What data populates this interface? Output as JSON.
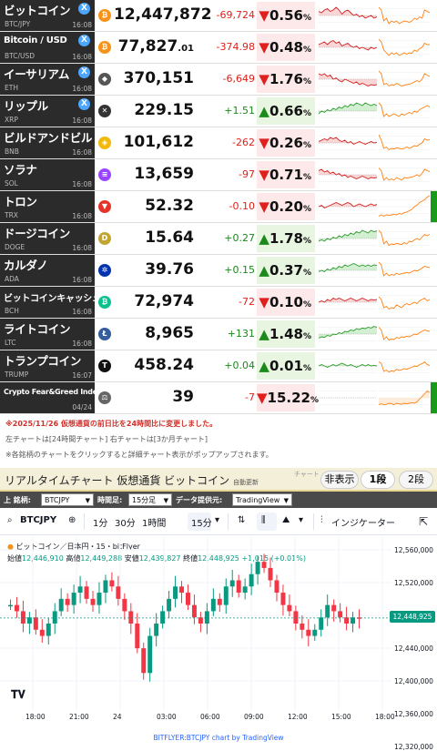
{
  "rates": [
    {
      "name": "ビットコイン",
      "symbol": "BTC/JPY",
      "time": "16:08",
      "x": true,
      "icon": "bitcoin-icon",
      "icon_glyph": "₿",
      "icon_color": "#f7931a",
      "price": "12,447,872",
      "price_small": "",
      "change": "-69,724",
      "dir": "down",
      "pct": "0.56",
      "today_spark": [
        0.35,
        0.4,
        0.3,
        0.25,
        0.35,
        0.3,
        0.2,
        0.3,
        0.45,
        0.35,
        0.3,
        0.4,
        0.5,
        0.45,
        0.55,
        0.5,
        0.6,
        0.55,
        0.5,
        0.6,
        0.55
      ],
      "month_spark": [
        0.2,
        0.3,
        0.7,
        0.6,
        0.8,
        0.7,
        0.75,
        0.7,
        0.8,
        0.75,
        0.7,
        0.72,
        0.75,
        0.7,
        0.6,
        0.65,
        0.55,
        0.6,
        0.3,
        0.35,
        0.4
      ],
      "bar": ""
    },
    {
      "name": "Bitcoin / USD",
      "symbol": "BTC/USD",
      "time": "16:08",
      "x": true,
      "icon": "bitcoin-icon",
      "icon_glyph": "₿",
      "icon_color": "#f7931a",
      "price": "77,827",
      "price_small": ".01",
      "change": "-374.98",
      "dir": "down",
      "pct": "0.48",
      "today_spark": [
        0.4,
        0.35,
        0.3,
        0.4,
        0.3,
        0.25,
        0.35,
        0.3,
        0.45,
        0.4,
        0.35,
        0.45,
        0.5,
        0.45,
        0.55,
        0.5,
        0.55,
        0.6,
        0.5,
        0.55,
        0.5
      ],
      "month_spark": [
        0.2,
        0.3,
        0.6,
        0.7,
        0.8,
        0.7,
        0.75,
        0.7,
        0.8,
        0.75,
        0.7,
        0.75,
        0.7,
        0.72,
        0.6,
        0.65,
        0.55,
        0.5,
        0.35,
        0.4,
        0.4
      ],
      "bar": ""
    },
    {
      "name": "イーサリアム",
      "symbol": "ETH",
      "time": "16:08",
      "x": true,
      "icon": "ethereum-icon",
      "icon_glyph": "◆",
      "icon_color": "#555555",
      "price": "370,151",
      "price_small": "",
      "change": "-6,649",
      "dir": "down",
      "pct": "1.76",
      "today_spark": [
        0.3,
        0.35,
        0.3,
        0.4,
        0.35,
        0.5,
        0.45,
        0.55,
        0.6,
        0.5,
        0.55,
        0.6,
        0.65,
        0.6,
        0.7,
        0.65,
        0.7,
        0.75,
        0.7,
        0.72,
        0.7
      ],
      "month_spark": [
        0.2,
        0.3,
        0.7,
        0.65,
        0.75,
        0.7,
        0.72,
        0.65,
        0.7,
        0.75,
        0.72,
        0.7,
        0.68,
        0.65,
        0.6,
        0.55,
        0.6,
        0.5,
        0.3,
        0.35,
        0.4
      ],
      "bar": ""
    },
    {
      "name": "リップル",
      "symbol": "XRP",
      "time": "16:08",
      "x": true,
      "icon": "xrp-icon",
      "icon_glyph": "✕",
      "icon_color": "#333333",
      "price": "229.15",
      "price_small": "",
      "change": "+1.51",
      "dir": "up",
      "pct": "0.66",
      "today_spark": [
        0.6,
        0.5,
        0.55,
        0.45,
        0.5,
        0.4,
        0.45,
        0.35,
        0.4,
        0.3,
        0.35,
        0.25,
        0.3,
        0.2,
        0.25,
        0.3,
        0.2,
        0.25,
        0.3,
        0.25,
        0.3
      ],
      "month_spark": [
        0.2,
        0.3,
        0.7,
        0.6,
        0.7,
        0.65,
        0.6,
        0.65,
        0.7,
        0.6,
        0.65,
        0.6,
        0.55,
        0.6,
        0.5,
        0.55,
        0.45,
        0.4,
        0.35,
        0.3,
        0.35
      ],
      "bar": ""
    },
    {
      "name": "ビルドアンドビルド",
      "symbol": "BNB",
      "time": "16:08",
      "x": false,
      "icon": "bnb-icon",
      "icon_glyph": "◈",
      "icon_color": "#f0b90b",
      "price": "101,612",
      "price_small": "",
      "change": "-262",
      "dir": "down",
      "pct": "0.26",
      "today_spark": [
        0.45,
        0.4,
        0.35,
        0.4,
        0.3,
        0.35,
        0.3,
        0.4,
        0.45,
        0.4,
        0.5,
        0.45,
        0.55,
        0.5,
        0.45,
        0.5,
        0.55,
        0.5,
        0.45,
        0.5,
        0.48
      ],
      "month_spark": [
        0.2,
        0.4,
        0.7,
        0.65,
        0.75,
        0.7,
        0.72,
        0.68,
        0.7,
        0.72,
        0.7,
        0.65,
        0.7,
        0.66,
        0.6,
        0.62,
        0.55,
        0.5,
        0.35,
        0.4,
        0.38
      ],
      "bar": ""
    },
    {
      "name": "ソラナ",
      "symbol": "SOL",
      "time": "16:08",
      "x": false,
      "icon": "solana-icon",
      "icon_glyph": "≡",
      "icon_color": "#9945ff",
      "price": "13,659",
      "price_small": "",
      "change": "-97",
      "dir": "down",
      "pct": "0.71",
      "today_spark": [
        0.35,
        0.3,
        0.4,
        0.35,
        0.45,
        0.4,
        0.5,
        0.45,
        0.55,
        0.5,
        0.6,
        0.55,
        0.6,
        0.65,
        0.6,
        0.55,
        0.6,
        0.65,
        0.6,
        0.62,
        0.6
      ],
      "month_spark": [
        0.25,
        0.35,
        0.7,
        0.6,
        0.7,
        0.65,
        0.7,
        0.6,
        0.65,
        0.7,
        0.6,
        0.62,
        0.6,
        0.58,
        0.55,
        0.5,
        0.55,
        0.45,
        0.3,
        0.35,
        0.38
      ],
      "bar": ""
    },
    {
      "name": "トロン",
      "symbol": "TRX",
      "time": "16:08",
      "x": false,
      "icon": "tron-icon",
      "icon_glyph": "▼",
      "icon_color": "#e5352b",
      "price": "52.32",
      "price_small": "",
      "change": "-0.10",
      "dir": "down",
      "pct": "0.20",
      "today_spark": [
        0.5,
        0.45,
        0.55,
        0.5,
        0.45,
        0.4,
        0.35,
        0.4,
        0.45,
        0.4,
        0.35,
        0.4,
        0.5,
        0.45,
        0.4,
        0.45,
        0.5,
        0.45,
        0.4,
        0.45,
        0.42
      ],
      "month_spark": [
        0.85,
        0.8,
        0.85,
        0.8,
        0.82,
        0.8,
        0.78,
        0.8,
        0.75,
        0.78,
        0.72,
        0.7,
        0.65,
        0.6,
        0.5,
        0.45,
        0.35,
        0.3,
        0.25,
        0.15,
        0.1
      ],
      "bar": "#1a9a1a"
    },
    {
      "name": "ドージコイン",
      "symbol": "DOGE",
      "time": "16:08",
      "x": false,
      "icon": "doge-icon",
      "icon_glyph": "D",
      "icon_color": "#c2a633",
      "price": "15.64",
      "price_small": "",
      "change": "+0.27",
      "dir": "up",
      "pct": "1.78",
      "today_spark": [
        0.6,
        0.55,
        0.6,
        0.5,
        0.55,
        0.45,
        0.5,
        0.4,
        0.45,
        0.35,
        0.4,
        0.3,
        0.35,
        0.25,
        0.3,
        0.2,
        0.25,
        0.3,
        0.2,
        0.25,
        0.22
      ],
      "month_spark": [
        0.2,
        0.3,
        0.7,
        0.6,
        0.75,
        0.7,
        0.72,
        0.68,
        0.7,
        0.72,
        0.65,
        0.7,
        0.6,
        0.62,
        0.55,
        0.5,
        0.55,
        0.45,
        0.35,
        0.4,
        0.35
      ],
      "bar": ""
    },
    {
      "name": "カルダノ",
      "symbol": "ADA",
      "time": "16:08",
      "x": false,
      "icon": "cardano-icon",
      "icon_glyph": "✲",
      "icon_color": "#0033ad",
      "price": "39.76",
      "price_small": "",
      "change": "+0.15",
      "dir": "up",
      "pct": "0.37",
      "today_spark": [
        0.55,
        0.5,
        0.55,
        0.45,
        0.5,
        0.4,
        0.45,
        0.35,
        0.4,
        0.3,
        0.35,
        0.3,
        0.25,
        0.3,
        0.35,
        0.3,
        0.35,
        0.3,
        0.35,
        0.3,
        0.32
      ],
      "month_spark": [
        0.2,
        0.3,
        0.7,
        0.6,
        0.7,
        0.65,
        0.68,
        0.6,
        0.65,
        0.62,
        0.6,
        0.58,
        0.6,
        0.55,
        0.5,
        0.52,
        0.48,
        0.42,
        0.35,
        0.38,
        0.4
      ],
      "bar": ""
    },
    {
      "name": "ビットコインキャッシュ",
      "symbol": "BCH",
      "time": "16:08",
      "x": false,
      "icon": "bch-icon",
      "icon_glyph": "₿",
      "icon_color": "#0ac18e",
      "price": "72,974",
      "price_small": "",
      "change": "-72",
      "dir": "down",
      "pct": "0.10",
      "today_spark": [
        0.5,
        0.45,
        0.5,
        0.4,
        0.45,
        0.35,
        0.4,
        0.35,
        0.4,
        0.45,
        0.4,
        0.35,
        0.4,
        0.45,
        0.4,
        0.35,
        0.4,
        0.45,
        0.4,
        0.42,
        0.4
      ],
      "month_spark": [
        0.3,
        0.4,
        0.7,
        0.65,
        0.75,
        0.7,
        0.72,
        0.6,
        0.65,
        0.7,
        0.6,
        0.55,
        0.6,
        0.55,
        0.5,
        0.55,
        0.45,
        0.4,
        0.35,
        0.45,
        0.4
      ],
      "bar": ""
    },
    {
      "name": "ライトコイン",
      "symbol": "LTC",
      "time": "16:08",
      "x": false,
      "icon": "litecoin-icon",
      "icon_glyph": "Ł",
      "icon_color": "#345d9d",
      "price": "8,965",
      "price_small": "",
      "change": "+131",
      "dir": "up",
      "pct": "1.48",
      "today_spark": [
        0.65,
        0.6,
        0.62,
        0.55,
        0.58,
        0.5,
        0.52,
        0.45,
        0.48,
        0.4,
        0.42,
        0.35,
        0.38,
        0.3,
        0.33,
        0.28,
        0.3,
        0.25,
        0.28,
        0.22,
        0.25
      ],
      "month_spark": [
        0.25,
        0.35,
        0.7,
        0.6,
        0.72,
        0.68,
        0.7,
        0.62,
        0.65,
        0.6,
        0.62,
        0.58,
        0.6,
        0.55,
        0.5,
        0.52,
        0.45,
        0.4,
        0.35,
        0.38,
        0.4
      ],
      "bar": ""
    },
    {
      "name": "トランプコイン",
      "symbol": "TRUMP",
      "time": "16:07",
      "x": false,
      "icon": "trump-icon",
      "icon_glyph": "T",
      "icon_color": "#111111",
      "price": "458.24",
      "price_small": "",
      "change": "+0.04",
      "dir": "up",
      "pct": "0.01",
      "today_spark": [
        0.5,
        0.45,
        0.5,
        0.55,
        0.5,
        0.45,
        0.5,
        0.45,
        0.4,
        0.45,
        0.5,
        0.45,
        0.5,
        0.55,
        0.5,
        0.45,
        0.5,
        0.45,
        0.5,
        0.48,
        0.5
      ],
      "month_spark": [
        0.35,
        0.4,
        0.7,
        0.65,
        0.72,
        0.68,
        0.7,
        0.62,
        0.66,
        0.64,
        0.6,
        0.62,
        0.58,
        0.55,
        0.5,
        0.52,
        0.45,
        0.42,
        0.35,
        0.45,
        0.48
      ],
      "bar": ""
    },
    {
      "name": "Crypto Fear&Greed Index",
      "symbol": "",
      "time": "04/24",
      "x": false,
      "icon": "fear-greed-icon",
      "icon_glyph": "⚖",
      "icon_color": "#666666",
      "price": "39",
      "price_small": "",
      "change": "-7",
      "dir": "down",
      "pct": "15.22",
      "today_spark": [],
      "month_spark": [
        0.75,
        0.72,
        0.76,
        0.74,
        0.7,
        0.72,
        0.75,
        0.7,
        0.72,
        0.74,
        0.7,
        0.72,
        0.7,
        0.68,
        0.7,
        0.65,
        0.55,
        0.45,
        0.35,
        0.25,
        0.3
      ],
      "bar": "#1a9a1a"
    }
  ],
  "notes": {
    "line1": "※2025/11/26 仮想通貨の前日比を24時間比に変更しました。",
    "line2": "左チャートは[24時間チャート] 右チャートは[3か月チャート]",
    "line3": "※各銘柄のチャートをクリックすると詳細チャート表示がポップアップされます。"
  },
  "realtime": {
    "title": "リアルタイムチャート 仮想通貨 ビットコイン",
    "auto_update": "自動更新",
    "chart_label": "チャート",
    "hide_label": "非表示",
    "tab1": "1段",
    "tab2": "2段"
  },
  "controls": {
    "symbol_label": "上 銘柄:",
    "symbol_value": "BTCJPY",
    "interval_label": "時間足:",
    "interval_value": "15分足",
    "provider_label": "データ提供元:",
    "provider_value": "TradingView"
  },
  "tv": {
    "symbol": "BTCJPY",
    "intervals": [
      "1分",
      "30分",
      "1時間",
      "15分"
    ],
    "indicators": "インジケーター",
    "legend_title": "ビットコイン／日本円・15・bitFlyer",
    "legend_o_label": "始値",
    "legend_o": "12,446,910",
    "legend_h_label": "高値",
    "legend_h": "12,449,288",
    "legend_l_label": "安値",
    "legend_l": "12,439,827",
    "legend_c_label": "終値",
    "legend_c": "12,448,925",
    "legend_chg": "+1,015 (+0.01%)",
    "last_price": "12,448,925",
    "ylabels": [
      "12,560,000",
      "12,520,000",
      "12,480,000",
      "12,440,000",
      "12,400,000",
      "12,360,000",
      "12,320,000"
    ],
    "xlabels": [
      "18:00",
      "21:00",
      "24",
      "03:00",
      "06:00",
      "09:00",
      "12:00",
      "15:00",
      "18:00"
    ],
    "credit": "BITFLYER:BTCJPY chart by TradingView"
  },
  "chart_data": {
    "type": "candlestick",
    "title": "ビットコイン／日本円・15・bitFlyer",
    "ylim": [
      12300000,
      12580000
    ],
    "series": [
      {
        "values": [
          12470000,
          12460000,
          12440000,
          12450000,
          12430000,
          12420000,
          12440000,
          12460000,
          12480000,
          12470000,
          12490000,
          12500000,
          12480000,
          12470000,
          12490000,
          12510000,
          12500000,
          12480000,
          12460000,
          12440000,
          12400000,
          12360000,
          12420000,
          12440000,
          12460000,
          12480000,
          12500000,
          12490000,
          12470000,
          12450000,
          12440000,
          12460000,
          12480000,
          12470000,
          12500000,
          12510000,
          12490000,
          12500000,
          12520000,
          12540000,
          12530000,
          12510000,
          12490000,
          12470000,
          12460000,
          12440000,
          12430000,
          12420000,
          12430000,
          12450000,
          12470000,
          12460000,
          12450000,
          12440000,
          12450000,
          12449000
        ]
      }
    ],
    "grid": true
  }
}
